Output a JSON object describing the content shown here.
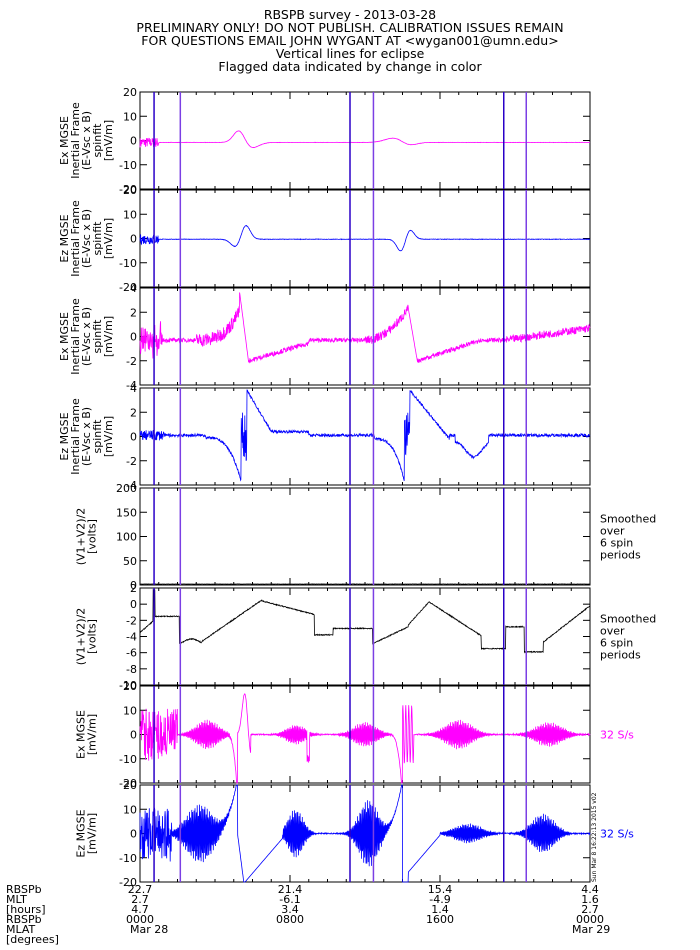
{
  "header": {
    "title": "RBSPB survey - 2013-03-28",
    "line2": "PRELIMINARY ONLY! DO NOT PUBLISH. CALIBRATION ISSUES REMAIN",
    "line3": "FOR QUESTIONS EMAIL JOHN WYGANT AT <wygan001@umn.edu>",
    "line4": "Vertical lines for eclipse",
    "line5": "Flagged data indicated by change in color"
  },
  "colors": {
    "magenta": "#ff00ff",
    "blue": "#0000ff",
    "black": "#000000",
    "vline": "#7b3fe4",
    "vline_dark": "#2a00c8"
  },
  "chart_data": {
    "type": "line",
    "x_range_hours": [
      0,
      24
    ],
    "eclipse_lines_hours": [
      0.75,
      2.15,
      11.2,
      12.45,
      19.4,
      20.6
    ],
    "side_note": "Sun Mar 8 16:22:13 2015 v02",
    "panels": [
      {
        "id": "ex_spinfit_1",
        "ylabel": [
          "Ex MGSE",
          "Inertial Frame",
          "(E-Vsc x B)",
          "spinfit",
          "[mV/m]"
        ],
        "ylim": [
          -20,
          20
        ],
        "yticks": [
          "20",
          "10",
          "0",
          "-10",
          "-20"
        ],
        "color": "#ff00ff",
        "kind": "ex_small"
      },
      {
        "id": "ez_spinfit_1",
        "ylabel": [
          "Ez MGSE",
          "Inertial Frame",
          "(E-Vsc x B)",
          "spinfit",
          "[mV/m]"
        ],
        "ylim": [
          -20,
          20
        ],
        "yticks": [
          "20",
          "10",
          "0",
          "-10",
          "-20"
        ],
        "color": "#0000ff",
        "kind": "ez_small"
      },
      {
        "id": "ex_spinfit_2",
        "ylabel": [
          "Ex MGSE",
          "Inertial Frame",
          "(E-Vsc x B)",
          "spinfit",
          "[mV/m]"
        ],
        "ylim": [
          -4,
          4
        ],
        "yticks": [
          "4",
          "2",
          "0",
          "-2",
          "-4"
        ],
        "color": "#ff00ff",
        "kind": "ex_zoom"
      },
      {
        "id": "ez_spinfit_2",
        "ylabel": [
          "Ez MGSE",
          "Inertial Frame",
          "(E-Vsc x B)",
          "spinfit",
          "[mV/m]"
        ],
        "ylim": [
          -4,
          4
        ],
        "yticks": [
          "4",
          "2",
          "0",
          "-2",
          "-4"
        ],
        "color": "#0000ff",
        "kind": "ez_zoom"
      },
      {
        "id": "v12_wide",
        "ylabel": [
          "(V1+V2)/2",
          "[volts]"
        ],
        "ylim": [
          0,
          200
        ],
        "yticks": [
          "200",
          "150",
          "100",
          "50",
          "0"
        ],
        "color": "#000000",
        "kind": "v_wide",
        "note": [
          "Smoothed",
          "over",
          "6 spin",
          "periods"
        ]
      },
      {
        "id": "v12_zoom",
        "ylabel": [
          "(V1+V2)/2",
          "[volts]"
        ],
        "ylim": [
          -10,
          2
        ],
        "yticks": [
          "2",
          "0",
          "-2",
          "-4",
          "-6",
          "-8",
          "-10"
        ],
        "color": "#000000",
        "kind": "v_zoom",
        "note": [
          "Smoothed",
          "over",
          "6 spin",
          "periods"
        ]
      },
      {
        "id": "ex_32",
        "ylabel": [
          "Ex MGSE",
          "[mV/m]"
        ],
        "ylim": [
          -20,
          20
        ],
        "yticks": [
          "20",
          "10",
          "0",
          "-10",
          "-20"
        ],
        "color": "#ff00ff",
        "kind": "ex_32",
        "note": [
          "32 S/s"
        ]
      },
      {
        "id": "ez_32",
        "ylabel": [
          "Ez MGSE",
          "[mV/m]"
        ],
        "ylim": [
          -20,
          20
        ],
        "yticks": [
          "20",
          "10",
          "0",
          "-10",
          "-20"
        ],
        "color": "#0000ff",
        "kind": "ez_32",
        "note": [
          "32 S/s"
        ]
      }
    ],
    "footer": {
      "row_labels": [
        "RBSPb",
        "MLT",
        "[hours]",
        "RBSPb",
        "MLAT",
        "[degrees]"
      ],
      "columns": [
        {
          "hour": 0,
          "vals": [
            "22.7",
            "2.7",
            "4.7",
            "0000",
            "Mar 28"
          ]
        },
        {
          "hour": 8,
          "vals": [
            "21.4",
            "-6.1",
            "3.4",
            "0800",
            ""
          ]
        },
        {
          "hour": 16,
          "vals": [
            "15.4",
            "-4.9",
            "1.4",
            "1600",
            ""
          ]
        },
        {
          "hour": 24,
          "vals": [
            "4.4",
            "1.6",
            "2.7",
            "0000",
            "Mar 29"
          ]
        }
      ]
    }
  }
}
